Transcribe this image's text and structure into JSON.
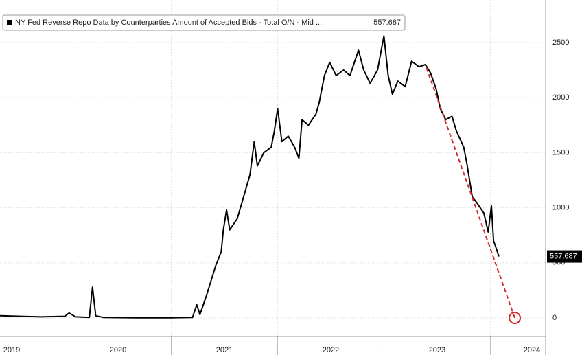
{
  "chart_data": {
    "type": "line",
    "legend_label": "NY Fed Reverse Repo Data by Counterparties Amount of Accepted Bids - Total O/N - Mid ...",
    "series": [
      {
        "name": "NY Fed Reverse Repo Data by Counterparties Amount of Accepted Bids - Total O/N - Mid ...",
        "color": "#000000",
        "x": [
          2019.39,
          2019.58,
          2019.78,
          2020.0,
          2020.04,
          2020.1,
          2020.23,
          2020.26,
          2020.29,
          2020.36,
          2020.68,
          2021.0,
          2021.2,
          2021.24,
          2021.27,
          2021.33,
          2021.42,
          2021.47,
          2021.49,
          2021.52,
          2021.55,
          2021.62,
          2021.68,
          2021.74,
          2021.78,
          2021.81,
          2021.87,
          2021.94,
          2021.97,
          2022.0,
          2022.04,
          2022.1,
          2022.16,
          2022.2,
          2022.23,
          2022.29,
          2022.36,
          2022.39,
          2022.44,
          2022.49,
          2022.55,
          2022.62,
          2022.68,
          2022.76,
          2022.81,
          2022.87,
          2022.94,
          2023.0,
          2023.04,
          2023.08,
          2023.13,
          2023.2,
          2023.26,
          2023.33,
          2023.39,
          2023.44,
          2023.49,
          2023.53,
          2023.58,
          2023.64,
          2023.68,
          2023.75,
          2023.78,
          2023.83,
          2023.87,
          2023.94,
          2023.98,
          2024.01,
          2024.03,
          2024.06,
          2024.08
        ],
        "values": [
          20,
          15,
          10,
          15,
          45,
          10,
          5,
          280,
          20,
          5,
          2,
          2,
          5,
          120,
          30,
          200,
          480,
          600,
          800,
          980,
          800,
          900,
          1100,
          1300,
          1600,
          1380,
          1500,
          1550,
          1700,
          1900,
          1600,
          1650,
          1550,
          1450,
          1800,
          1750,
          1850,
          1950,
          2200,
          2320,
          2200,
          2250,
          2200,
          2430,
          2250,
          2130,
          2250,
          2560,
          2200,
          2030,
          2150,
          2100,
          2330,
          2280,
          2300,
          2220,
          2080,
          1900,
          1800,
          1830,
          1700,
          1550,
          1400,
          1100,
          1050,
          950,
          780,
          1020,
          700,
          620,
          557.687
        ]
      }
    ],
    "trend": {
      "color": "#d62728",
      "x": [
        2023.4,
        2024.23
      ],
      "y": [
        2270,
        0
      ]
    },
    "xlim": [
      2019.39,
      2024.52
    ],
    "xticks": [
      {
        "value": 2019.5,
        "label": "2019"
      },
      {
        "value": 2020.5,
        "label": "2020"
      },
      {
        "value": 2021.5,
        "label": "2021"
      },
      {
        "value": 2022.5,
        "label": "2022"
      },
      {
        "value": 2023.5,
        "label": "2023"
      },
      {
        "value": 2024.5,
        "label": "2024"
      }
    ],
    "ylim": [
      -168,
      2886
    ],
    "yticks": [
      0,
      500,
      1000,
      1500,
      2000,
      2500
    ],
    "grid": true
  }
}
